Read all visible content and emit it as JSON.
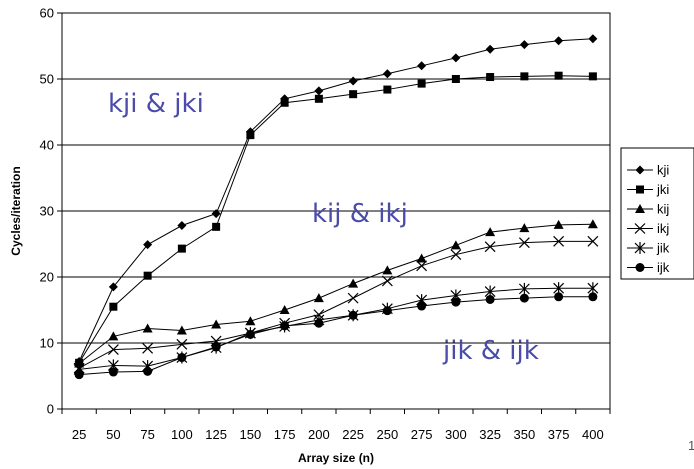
{
  "chart_data": {
    "type": "line",
    "xlabel": "Array size (n)",
    "ylabel": "Cycles/iteration",
    "x": [
      25,
      50,
      75,
      100,
      125,
      150,
      175,
      200,
      225,
      250,
      275,
      300,
      325,
      350,
      375,
      400
    ],
    "ylim": [
      0,
      60
    ],
    "yticks": [
      0,
      10,
      20,
      30,
      40,
      50,
      60
    ],
    "grid": "horizontal",
    "legend_position": "right",
    "series": [
      {
        "name": "kji",
        "marker": "diamond",
        "values": [
          7.2,
          18.5,
          24.9,
          27.8,
          29.6,
          42.0,
          47.0,
          48.2,
          49.7,
          50.8,
          52.0,
          53.2,
          54.5,
          55.2,
          55.8,
          56.1
        ]
      },
      {
        "name": "jki",
        "marker": "square",
        "values": [
          7.0,
          15.5,
          20.2,
          24.3,
          27.6,
          41.5,
          46.4,
          47.0,
          47.7,
          48.4,
          49.3,
          50.0,
          50.3,
          50.4,
          50.5,
          50.4
        ]
      },
      {
        "name": "kij",
        "marker": "triangle",
        "values": [
          6.9,
          11.0,
          12.2,
          11.9,
          12.8,
          13.3,
          15.0,
          16.8,
          19.0,
          21.0,
          22.8,
          24.8,
          26.8,
          27.4,
          27.9,
          28.0
        ]
      },
      {
        "name": "ikj",
        "marker": "x",
        "values": [
          6.2,
          9.0,
          9.2,
          9.8,
          10.3,
          11.5,
          13.0,
          14.3,
          16.8,
          19.4,
          21.7,
          23.4,
          24.6,
          25.2,
          25.4,
          25.4
        ]
      },
      {
        "name": "jik",
        "marker": "star",
        "values": [
          6.0,
          6.6,
          6.5,
          7.8,
          9.3,
          11.5,
          12.5,
          13.5,
          14.2,
          15.2,
          16.5,
          17.2,
          17.8,
          18.2,
          18.3,
          18.3
        ]
      },
      {
        "name": "ijk",
        "marker": "circle",
        "values": [
          5.2,
          5.6,
          5.7,
          7.8,
          9.4,
          11.3,
          12.6,
          13.0,
          14.2,
          14.9,
          15.6,
          16.2,
          16.6,
          16.8,
          17.0,
          17.0
        ]
      }
    ],
    "annotations": [
      "kji & jki",
      "kij & ikj",
      "jik & ijk"
    ],
    "annotation_color": "#4b4baa"
  },
  "page_number": "1"
}
